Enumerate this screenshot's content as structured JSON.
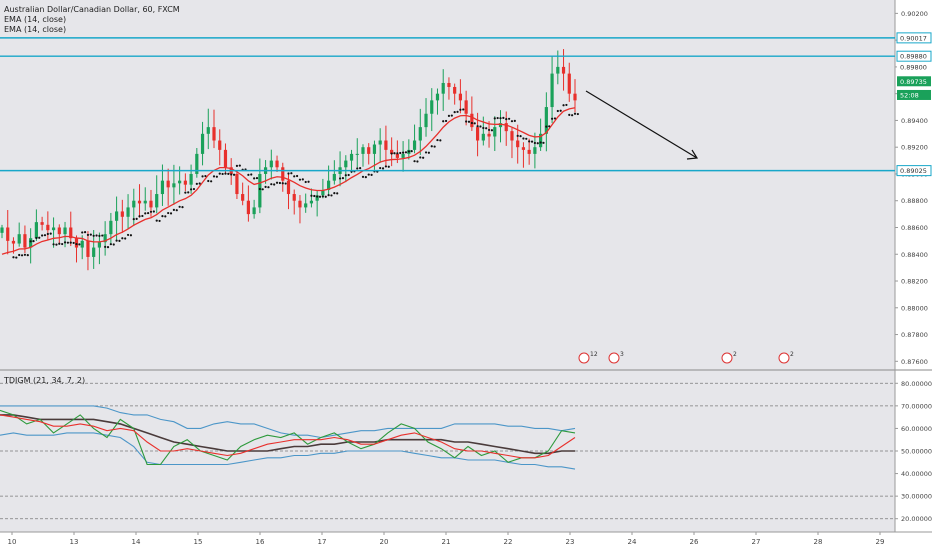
{
  "symbol_line": "Australian Dollar/Canadian Dollar, 60, FXCM",
  "ema_lines": [
    "EMA (14, close)",
    "EMA (14, close)"
  ],
  "indicator_title": "TDIGM (21, 34, 7, 2)",
  "chart_data": [
    {
      "type": "candlestick",
      "title": "Australian Dollar/Canadian Dollar, 60, FXCM",
      "x_ticks": [
        "10",
        "13",
        "14",
        "15",
        "16",
        "17",
        "20",
        "21",
        "22",
        "23",
        "24",
        "26",
        "27",
        "28",
        "29"
      ],
      "y_ticks": [
        "0.90200",
        "0.90000",
        "0.89800",
        "0.89600",
        "0.89400",
        "0.89200",
        "0.89000",
        "0.88800",
        "0.88600",
        "0.88400",
        "0.88200",
        "0.88000",
        "0.87800",
        "0.87600"
      ],
      "ylim": [
        0.8755,
        0.903
      ],
      "horizontal_levels": [
        {
          "label": "0.90017",
          "value": 0.90017,
          "color": "#18a7c9"
        },
        {
          "label": "0.89880",
          "value": 0.8988,
          "color": "#18a7c9"
        },
        {
          "label": "0.89025",
          "value": 0.89025,
          "color": "#18a7c9"
        }
      ],
      "price_labels": [
        {
          "label": "0.89800",
          "color": "#ffffff",
          "text_color": "#333333"
        },
        {
          "label": "0.89735",
          "color": "#1aa15a",
          "text_color": "#ffffff"
        },
        {
          "label": "52:08",
          "color": "#1aa15a",
          "text_color": "#ffffff"
        }
      ],
      "event_markers": [
        "12",
        "3",
        "2",
        "2"
      ],
      "close_series": [
        0.886,
        0.885,
        0.8848,
        0.8855,
        0.8845,
        0.8852,
        0.8864,
        0.8862,
        0.8858,
        0.886,
        0.8855,
        0.886,
        0.8852,
        0.8845,
        0.885,
        0.8838,
        0.8845,
        0.8849,
        0.8855,
        0.8865,
        0.8872,
        0.8868,
        0.8875,
        0.888,
        0.8878,
        0.888,
        0.8875,
        0.8885,
        0.8895,
        0.889,
        0.8893,
        0.8895,
        0.8892,
        0.89,
        0.8915,
        0.893,
        0.8935,
        0.8925,
        0.8918,
        0.8905,
        0.89,
        0.8885,
        0.888,
        0.887,
        0.8875,
        0.89,
        0.8905,
        0.891,
        0.8905,
        0.8895,
        0.8885,
        0.888,
        0.8875,
        0.8878,
        0.888,
        0.8884,
        0.8888,
        0.8895,
        0.89,
        0.8905,
        0.891,
        0.8915,
        0.8915,
        0.892,
        0.8915,
        0.8922,
        0.8925,
        0.8918,
        0.8915,
        0.8912,
        0.8915,
        0.8918,
        0.8925,
        0.8935,
        0.8945,
        0.8955,
        0.896,
        0.8968,
        0.8965,
        0.896,
        0.8955,
        0.8945,
        0.8935,
        0.8925,
        0.893,
        0.8928,
        0.8935,
        0.8938,
        0.8932,
        0.8925,
        0.892,
        0.8918,
        0.8915,
        0.892,
        0.893,
        0.895,
        0.8975,
        0.898,
        0.8975,
        0.896,
        0.8955
      ],
      "ema_color": "#e8302c",
      "sar_color": "#111111",
      "up_color": "#1aa15a",
      "down_color": "#e8302c"
    },
    {
      "type": "line",
      "title": "TDIGM (21, 34, 7, 2)",
      "y_ticks": [
        "80.00000",
        "70.00000",
        "60.00000",
        "50.00000",
        "40.00000",
        "30.00000",
        "20.00000"
      ],
      "ylim": [
        15,
        85
      ],
      "levels": [
        80,
        70,
        50,
        30,
        20
      ],
      "series": [
        {
          "color": "#4c96c8",
          "role": "upper band",
          "values": [
            70,
            70,
            70,
            70,
            70,
            70,
            70,
            70,
            69,
            67,
            66,
            66,
            64,
            63,
            60,
            60,
            62,
            63,
            62,
            62,
            60,
            58,
            57,
            57,
            56,
            57,
            58,
            59,
            59,
            60,
            60,
            60,
            60,
            60,
            62,
            62,
            62,
            62,
            61,
            61,
            60,
            60,
            59,
            60
          ]
        },
        {
          "color": "#4c96c8",
          "role": "lower band",
          "values": [
            57,
            58,
            57,
            57,
            57,
            58,
            58,
            58,
            57,
            56,
            52,
            45,
            44,
            44,
            44,
            44,
            44,
            44,
            45,
            46,
            47,
            47,
            48,
            48,
            49,
            49,
            50,
            50,
            50,
            50,
            50,
            49,
            48,
            47,
            47,
            46,
            46,
            46,
            45,
            44,
            44,
            43,
            43,
            42
          ]
        },
        {
          "color": "#4a3b3b",
          "role": "middle",
          "values": [
            66,
            66,
            65,
            64,
            64,
            64,
            64,
            64,
            63,
            62,
            60,
            58,
            56,
            54,
            53,
            52,
            51,
            50,
            50,
            50,
            50,
            51,
            52,
            52,
            53,
            53,
            54,
            54,
            54,
            55,
            55,
            55,
            55,
            55,
            54,
            54,
            53,
            52,
            51,
            50,
            49,
            49,
            50,
            50
          ]
        },
        {
          "color": "#2e9a3c",
          "role": "rsi",
          "values": [
            68,
            66,
            62,
            64,
            58,
            62,
            66,
            60,
            56,
            64,
            60,
            44,
            44,
            52,
            55,
            50,
            48,
            46,
            52,
            55,
            57,
            56,
            58,
            53,
            56,
            58,
            54,
            51,
            53,
            58,
            62,
            60,
            54,
            51,
            47,
            52,
            48,
            50,
            45,
            47,
            47,
            50,
            59,
            58
          ]
        },
        {
          "color": "#e8302c",
          "role": "signal",
          "values": [
            66,
            65,
            64,
            63,
            61,
            61,
            62,
            61,
            59,
            60,
            59,
            54,
            50,
            50,
            51,
            50,
            49,
            48,
            49,
            51,
            53,
            54,
            55,
            55,
            55,
            56,
            55,
            53,
            53,
            55,
            57,
            58,
            56,
            54,
            51,
            50,
            50,
            49,
            48,
            47,
            47,
            48,
            52,
            56
          ]
        }
      ]
    }
  ]
}
